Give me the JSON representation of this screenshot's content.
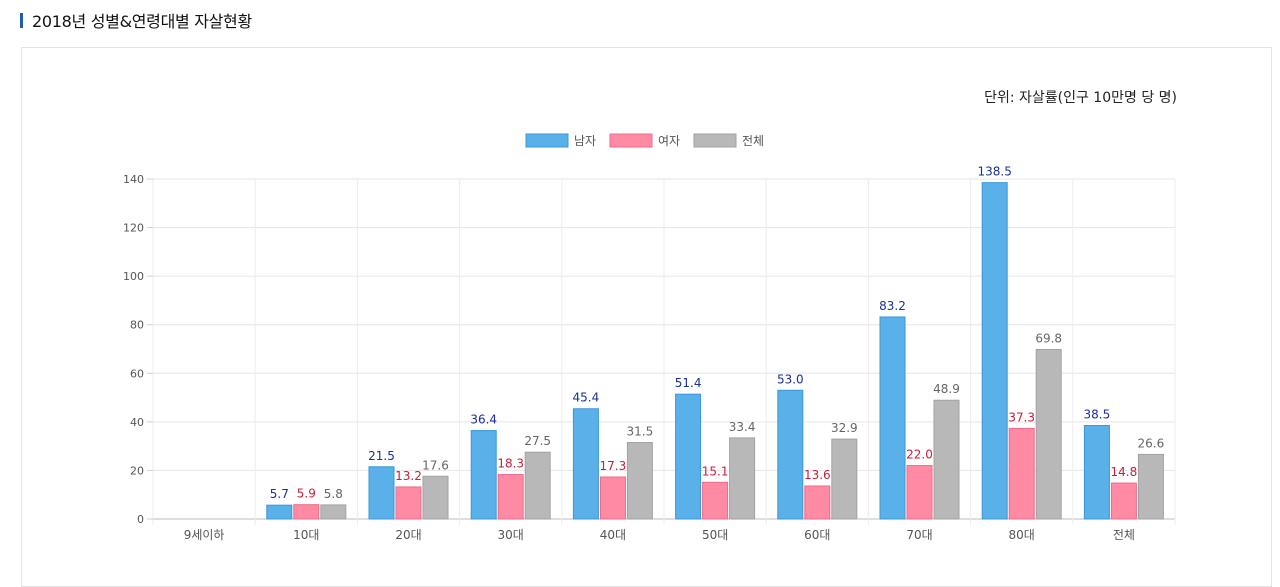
{
  "page": {
    "title": "2018년 성별&연령대별 자살현황",
    "unit": "단위: 자살률(인구 10만명 당 명)"
  },
  "colors": {
    "title_marker": "#1f5fa8",
    "male": "#5ab0e8",
    "male_border": "#3a98d8",
    "female": "#ff8aa3",
    "female_border": "#f06a88",
    "total": "#b8b8b8",
    "total_border": "#a2a2a2",
    "male_label": "#1a2f9c",
    "female_label": "#c81e3a",
    "total_label": "#666666"
  },
  "chart_data": {
    "type": "bar",
    "title": "2018년 성별&연령대별 자살현황",
    "categories": [
      "9세이하",
      "10대",
      "20대",
      "30대",
      "40대",
      "50대",
      "60대",
      "70대",
      "80대",
      "전체"
    ],
    "series": [
      {
        "name": "남자",
        "values": [
          null,
          5.7,
          21.5,
          36.4,
          45.4,
          51.4,
          53.0,
          83.2,
          138.5,
          38.5
        ]
      },
      {
        "name": "여자",
        "values": [
          null,
          5.9,
          13.2,
          18.3,
          17.3,
          15.1,
          13.6,
          22.0,
          37.3,
          14.8
        ]
      },
      {
        "name": "전체",
        "values": [
          null,
          5.8,
          17.6,
          27.5,
          31.5,
          33.4,
          32.9,
          48.9,
          69.8,
          26.6
        ]
      }
    ],
    "yticks": [
      0,
      20,
      40,
      60,
      80,
      100,
      120,
      140
    ],
    "ylim": [
      0,
      140
    ],
    "grid": true,
    "legend_position": "top-center",
    "value_labels": true
  }
}
